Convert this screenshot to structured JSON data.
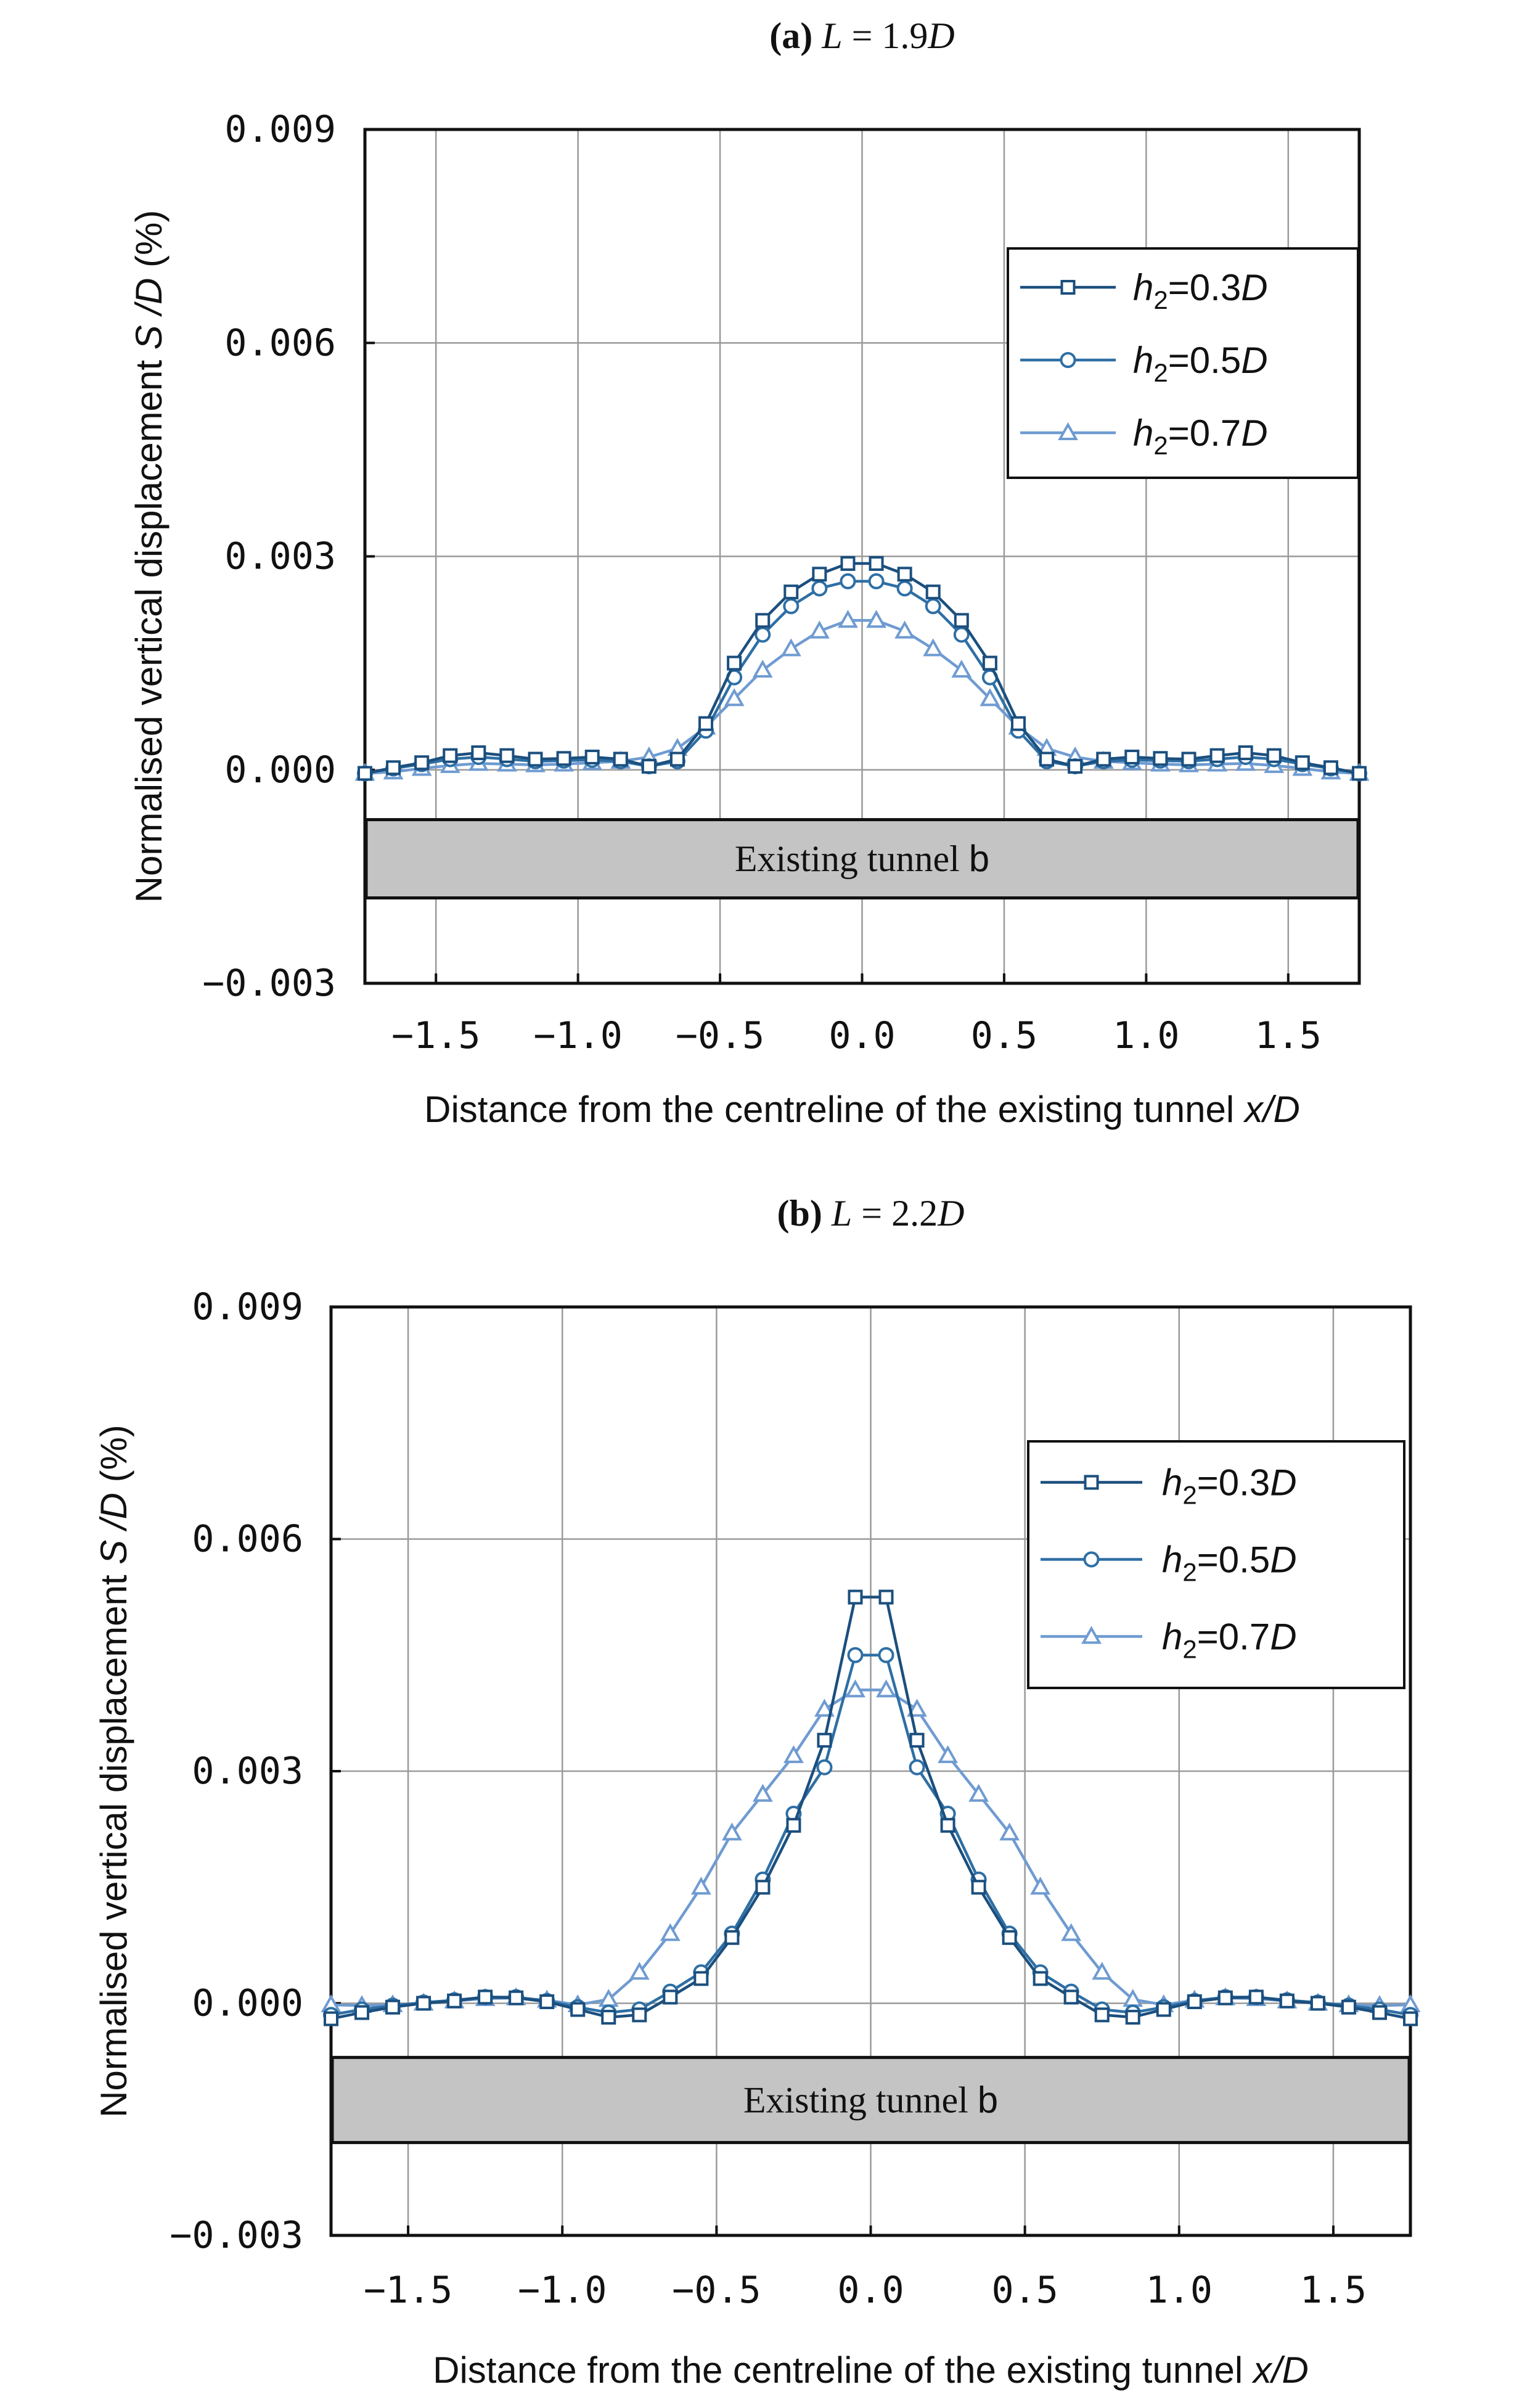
{
  "chart_data": [
    {
      "type": "line",
      "panel_label": "(a)",
      "title_prefix": "L",
      "title_rest": " = 1.9",
      "title_unit": "D",
      "xlabel_main": "Distance from the centreline of the existing tunnel ",
      "xlabel_italic": "x/D",
      "ylabel_main": "Normalised vertical displacement ",
      "ylabel_italic": "S /D",
      "ylabel_tail": " (%)",
      "xlim": [
        -1.75,
        1.75
      ],
      "ylim": [
        -0.003,
        0.009
      ],
      "xticks": [
        -1.5,
        -1.0,
        -0.5,
        0.0,
        0.5,
        1.0,
        1.5
      ],
      "xtick_labels": [
        "−1.5",
        "−1.0",
        "−0.5",
        "0.0",
        "0.5",
        "1.0",
        "1.5"
      ],
      "yticks": [
        -0.003,
        0.0,
        0.003,
        0.006,
        0.009
      ],
      "ytick_labels": [
        "−0.003",
        "0.000",
        "0.003",
        "0.006",
        "0.009"
      ],
      "grid": true,
      "legend_position": "top-right",
      "tunnel": {
        "label_main": "Existing tunnel ",
        "label_tag": "b",
        "y_range": [
          -0.0018,
          -0.0007
        ]
      },
      "x": [
        -1.75,
        -1.65,
        -1.55,
        -1.45,
        -1.35,
        -1.25,
        -1.15,
        -1.05,
        -0.95,
        -0.85,
        -0.75,
        -0.65,
        -0.55,
        -0.45,
        -0.35,
        -0.25,
        -0.15,
        -0.05,
        0.05,
        0.15,
        0.25,
        0.35,
        0.45,
        0.55,
        0.65,
        0.75,
        0.85,
        0.95,
        1.05,
        1.15,
        1.25,
        1.35,
        1.45,
        1.55,
        1.65,
        1.75
      ],
      "series": [
        {
          "name": "h2=0.3D",
          "legend_base": "h",
          "legend_sub": "2",
          "legend_eq": "=0.3",
          "legend_unit": "D",
          "marker": "square",
          "color": "#1b4f7e",
          "values": [
            -5e-05,
            3e-05,
            0.0001,
            0.0002,
            0.00024,
            0.0002,
            0.00015,
            0.00016,
            0.00018,
            0.00015,
            5e-05,
            0.00015,
            0.00065,
            0.0015,
            0.0021,
            0.0025,
            0.00275,
            0.0029,
            0.0029,
            0.00275,
            0.0025,
            0.0021,
            0.0015,
            0.00065,
            0.00015,
            5e-05,
            0.00015,
            0.00018,
            0.00016,
            0.00015,
            0.0002,
            0.00024,
            0.0002,
            0.0001,
            3e-05,
            -5e-05
          ]
        },
        {
          "name": "h2=0.5D",
          "legend_base": "h",
          "legend_sub": "2",
          "legend_eq": "=0.5",
          "legend_unit": "D",
          "marker": "circle",
          "color": "#2e6fa5",
          "values": [
            -5e-05,
            2e-05,
            8e-05,
            0.00015,
            0.00018,
            0.00015,
            0.00012,
            0.00013,
            0.00014,
            0.00012,
            5e-05,
            0.00012,
            0.00055,
            0.0013,
            0.0019,
            0.0023,
            0.00255,
            0.00265,
            0.00265,
            0.00255,
            0.0023,
            0.0019,
            0.0013,
            0.00055,
            0.00012,
            5e-05,
            0.00012,
            0.00014,
            0.00013,
            0.00012,
            0.00015,
            0.00018,
            0.00015,
            8e-05,
            2e-05,
            -5e-05
          ]
        },
        {
          "name": "h2=0.7D",
          "legend_base": "h",
          "legend_sub": "2",
          "legend_eq": "=0.7",
          "legend_unit": "D",
          "marker": "triangle",
          "color": "#6f9bd1",
          "values": [
            -5e-05,
            -3e-05,
            2e-05,
            6e-05,
            9e-05,
            8e-05,
            7e-05,
            8e-05,
            0.0001,
            0.00012,
            0.00018,
            0.0003,
            0.0006,
            0.001,
            0.0014,
            0.0017,
            0.00195,
            0.0021,
            0.0021,
            0.00195,
            0.0017,
            0.0014,
            0.001,
            0.0006,
            0.0003,
            0.00018,
            0.00012,
            0.0001,
            8e-05,
            7e-05,
            8e-05,
            9e-05,
            6e-05,
            2e-05,
            -3e-05,
            -5e-05
          ]
        }
      ]
    },
    {
      "type": "line",
      "panel_label": "(b)",
      "title_prefix": "L",
      "title_rest": " = 2.2",
      "title_unit": "D",
      "xlabel_main": "Distance from the centreline of the existing tunnel ",
      "xlabel_italic": "x/D",
      "ylabel_main": "Normalised vertical displacement ",
      "ylabel_italic": "S /D",
      "ylabel_tail": " (%)",
      "xlim": [
        -1.75,
        1.75
      ],
      "ylim": [
        -0.003,
        0.009
      ],
      "xticks": [
        -1.5,
        -1.0,
        -0.5,
        0.0,
        0.5,
        1.0,
        1.5
      ],
      "xtick_labels": [
        "−1.5",
        "−1.0",
        "−0.5",
        "0.0",
        "0.5",
        "1.0",
        "1.5"
      ],
      "yticks": [
        -0.003,
        0.0,
        0.003,
        0.006,
        0.009
      ],
      "ytick_labels": [
        "−0.003",
        "0.000",
        "0.003",
        "0.006",
        "0.009"
      ],
      "grid": true,
      "legend_position": "top-right",
      "tunnel": {
        "label_main": "Existing tunnel ",
        "label_tag": "b",
        "y_range": [
          -0.0018,
          -0.0007
        ]
      },
      "x": [
        -1.75,
        -1.65,
        -1.55,
        -1.45,
        -1.35,
        -1.25,
        -1.15,
        -1.05,
        -0.95,
        -0.85,
        -0.75,
        -0.65,
        -0.55,
        -0.45,
        -0.35,
        -0.25,
        -0.15,
        -0.05,
        0.05,
        0.15,
        0.25,
        0.35,
        0.45,
        0.55,
        0.65,
        0.75,
        0.85,
        0.95,
        1.05,
        1.15,
        1.25,
        1.35,
        1.45,
        1.55,
        1.65,
        1.75
      ],
      "series": [
        {
          "name": "h2=0.3D",
          "legend_base": "h",
          "legend_sub": "2",
          "legend_eq": "=0.3",
          "legend_unit": "D",
          "marker": "square",
          "color": "#1b4f7e",
          "values": [
            -0.0002,
            -0.00012,
            -5e-05,
            0.0,
            3e-05,
            8e-05,
            7e-05,
            2e-05,
            -8e-05,
            -0.00018,
            -0.00015,
            8e-05,
            0.00032,
            0.00085,
            0.0015,
            0.0023,
            0.0034,
            0.00525,
            0.00525,
            0.0034,
            0.0023,
            0.0015,
            0.00085,
            0.00032,
            8e-05,
            -0.00015,
            -0.00018,
            -8e-05,
            2e-05,
            7e-05,
            8e-05,
            3e-05,
            0.0,
            -5e-05,
            -0.00012,
            -0.0002
          ]
        },
        {
          "name": "h2=0.5D",
          "legend_base": "h",
          "legend_sub": "2",
          "legend_eq": "=0.5",
          "legend_unit": "D",
          "marker": "circle",
          "color": "#2e6fa5",
          "values": [
            -0.00015,
            -8e-05,
            -3e-05,
            1e-05,
            4e-05,
            8e-05,
            8e-05,
            3e-05,
            -5e-05,
            -0.00012,
            -8e-05,
            0.00015,
            0.0004,
            0.0009,
            0.0016,
            0.00245,
            0.00305,
            0.0045,
            0.0045,
            0.00305,
            0.00245,
            0.0016,
            0.0009,
            0.0004,
            0.00015,
            -8e-05,
            -0.00012,
            -5e-05,
            3e-05,
            8e-05,
            8e-05,
            4e-05,
            1e-05,
            -3e-05,
            -8e-05,
            -0.00015
          ]
        },
        {
          "name": "h2=0.7D",
          "legend_base": "h",
          "legend_sub": "2",
          "legend_eq": "=0.7",
          "legend_unit": "D",
          "marker": "triangle",
          "color": "#6f9bd1",
          "values": [
            -2e-05,
            -3e-05,
            -2e-05,
            0.0,
            3e-05,
            6e-05,
            7e-05,
            4e-05,
            -2e-05,
            5e-05,
            0.0004,
            0.0009,
            0.0015,
            0.0022,
            0.0027,
            0.0032,
            0.0038,
            0.00405,
            0.00405,
            0.0038,
            0.0032,
            0.0027,
            0.0022,
            0.0015,
            0.0009,
            0.0004,
            5e-05,
            -2e-05,
            4e-05,
            7e-05,
            6e-05,
            3e-05,
            0.0,
            -2e-05,
            -3e-05,
            -2e-05
          ]
        }
      ]
    }
  ]
}
